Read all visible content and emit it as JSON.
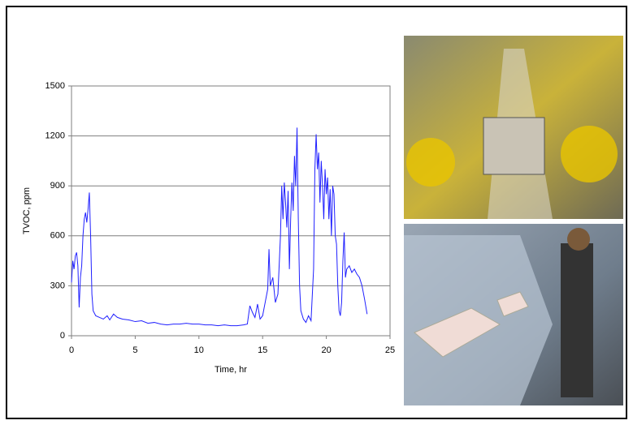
{
  "chart_data": {
    "type": "line",
    "x_label": "Time, hr",
    "y_label": "TVOC, ppm",
    "x": [
      0,
      0.1,
      0.2,
      0.3,
      0.4,
      0.5,
      0.6,
      0.7,
      0.8,
      0.9,
      1.0,
      1.1,
      1.2,
      1.3,
      1.4,
      1.5,
      1.6,
      1.7,
      1.9,
      2.2,
      2.5,
      2.8,
      3.0,
      3.3,
      3.6,
      4,
      4.5,
      5,
      5.5,
      6,
      6.5,
      7,
      7.5,
      8,
      8.5,
      9,
      9.5,
      10,
      10.5,
      11,
      11.5,
      12,
      12.5,
      13,
      13.5,
      13.8,
      14,
      14.2,
      14.4,
      14.6,
      14.8,
      15,
      15.2,
      15.4,
      15.5,
      15.6,
      15.8,
      16,
      16.2,
      16.4,
      16.5,
      16.6,
      16.7,
      16.8,
      16.9,
      17,
      17.1,
      17.2,
      17.3,
      17.4,
      17.5,
      17.6,
      17.7,
      17.8,
      17.9,
      18,
      18.2,
      18.4,
      18.6,
      18.8,
      19,
      19.1,
      19.2,
      19.3,
      19.4,
      19.5,
      19.6,
      19.7,
      19.8,
      19.9,
      20,
      20.1,
      20.2,
      20.3,
      20.4,
      20.5,
      20.6,
      20.7,
      20.8,
      20.9,
      21,
      21.1,
      21.2,
      21.3,
      21.4,
      21.5,
      21.6,
      21.8,
      22,
      22.2,
      22.4,
      22.6,
      22.8,
      23,
      23.2
    ],
    "values": [
      320,
      450,
      400,
      480,
      500,
      420,
      170,
      350,
      420,
      600,
      700,
      740,
      680,
      760,
      860,
      600,
      250,
      150,
      120,
      110,
      100,
      120,
      95,
      130,
      110,
      100,
      95,
      85,
      90,
      75,
      80,
      70,
      65,
      70,
      70,
      75,
      70,
      70,
      65,
      65,
      60,
      65,
      60,
      60,
      65,
      70,
      180,
      140,
      110,
      190,
      100,
      120,
      200,
      280,
      520,
      300,
      350,
      200,
      250,
      600,
      900,
      700,
      920,
      800,
      650,
      870,
      400,
      700,
      920,
      750,
      1080,
      900,
      1250,
      700,
      300,
      150,
      100,
      80,
      120,
      90,
      400,
      1000,
      1210,
      1000,
      1100,
      800,
      1050,
      900,
      700,
      1000,
      850,
      950,
      700,
      880,
      600,
      900,
      850,
      600,
      550,
      300,
      150,
      120,
      200,
      450,
      620,
      350,
      400,
      420,
      380,
      400,
      370,
      350,
      300,
      220,
      130
    ],
    "color": "#2020ff",
    "xlim": [
      0,
      25
    ],
    "ylim": [
      0,
      1500
    ],
    "xticks": [
      0,
      5,
      10,
      15,
      20,
      25
    ],
    "yticks": [
      0,
      300,
      600,
      900,
      1200,
      1500
    ],
    "grid": true
  }
}
